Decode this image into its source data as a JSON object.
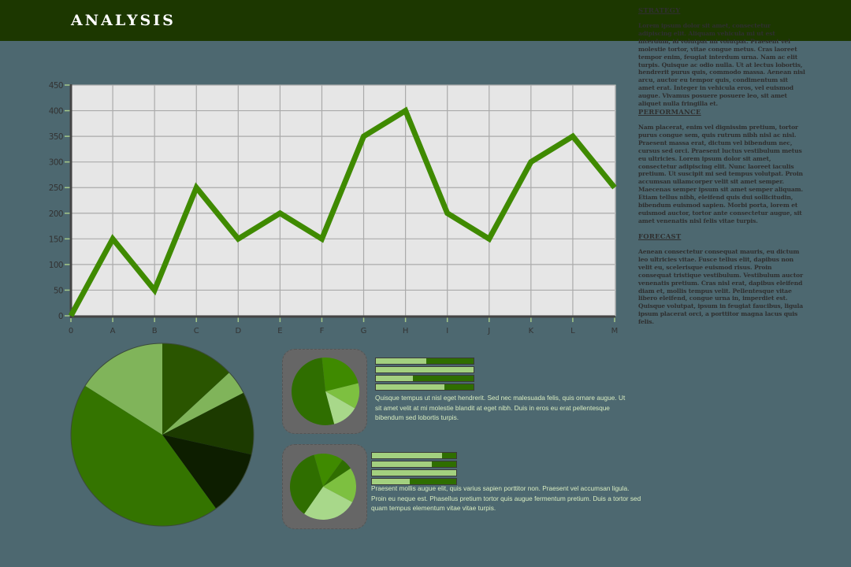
{
  "header": {
    "title": "ANALYSIS"
  },
  "colors": {
    "header_bg": "#1c3700",
    "page_bg": "#4d6870",
    "line": "#3f8a00",
    "plot_bg": "#e6e6e6",
    "grid": "#aaaaaa"
  },
  "chart_data": [
    {
      "type": "line",
      "title": "",
      "xlabel": "",
      "ylabel": "",
      "categories": [
        "0",
        "A",
        "B",
        "C",
        "D",
        "E",
        "F",
        "G",
        "H",
        "I",
        "J",
        "K",
        "L",
        "M"
      ],
      "values": [
        0,
        150,
        50,
        250,
        150,
        200,
        150,
        350,
        400,
        200,
        150,
        300,
        350,
        250
      ],
      "ylim": [
        0,
        450
      ],
      "yticks": [
        0,
        50,
        100,
        150,
        200,
        250,
        300,
        350,
        400,
        450
      ],
      "grid": true,
      "legend": null
    },
    {
      "type": "pie",
      "title": "",
      "slices": [
        {
          "value": 13.1,
          "color": "#2a5500"
        },
        {
          "value": 4.3,
          "color": "#80b45a"
        },
        {
          "value": 11.1,
          "color": "#1c3a00"
        },
        {
          "value": 11.5,
          "color": "#0d1e00"
        },
        {
          "value": 44.0,
          "color": "#347400"
        },
        {
          "value": 16.0,
          "color": "#80b45a"
        }
      ]
    },
    {
      "type": "pie",
      "title": "",
      "start_angle_deg": -6,
      "slices": [
        {
          "value": 22.8,
          "color": "#3f8a00"
        },
        {
          "value": 12.2,
          "color": "#7dc040"
        },
        {
          "value": 12.5,
          "color": "#a8d88a"
        },
        {
          "value": 52.5,
          "color": "#2f6e00"
        }
      ]
    },
    {
      "type": "bar",
      "orientation": "horizontal",
      "values_percent": [
        52,
        100,
        38,
        70
      ]
    },
    {
      "type": "pie",
      "title": "",
      "start_angle_deg": -16,
      "slices": [
        {
          "value": 14.4,
          "color": "#3f8a00"
        },
        {
          "value": 5.7,
          "color": "#2f6e00"
        },
        {
          "value": 17.1,
          "color": "#7dc040"
        },
        {
          "value": 26.9,
          "color": "#a8d88a"
        },
        {
          "value": 35.9,
          "color": "#2f6e00"
        }
      ]
    },
    {
      "type": "bar",
      "orientation": "horizontal",
      "values_percent": [
        83,
        71,
        100,
        45
      ]
    }
  ],
  "sidebar": {
    "sections": [
      {
        "heading": "STRATEGY",
        "body": "Lorem ipsum dolor sit amet, consectetur adipiscing elit. Aliquam vehicula mi ut est interdum, id volutpat mi volutpat. Praesent vel molestie tortor, vitae congue metus. Cras laoreet tempor enim, feugiat interdum urna. Nam ac elit turpis. Quisque ac odio nulla. Ut at lectus lobortis, hendrerit purus quis, commodo massa. Aenean nisl arcu, auctor eu tempor quis, condimentum sit amet erat. Integer in vehicula eros, vel euismod augue. Vivamus posuere posuere leo, sit amet aliquet nulla fringilla et."
      },
      {
        "heading": "PERFORMANCE",
        "body": "Nam placerat, enim vel dignissim pretium, tortor purus congue sem, quis rutrum nibh nisl ac nisl. Praesent massa erat, dictum vel bibendum nec, cursus sed orci. Praesent luctus vestibulum metus eu ultricies. Lorem ipsum dolor sit amet, consectetur adipiscing elit. Nunc laoreet iaculis pretium. Ut suscipit mi sed tempus volutpat. Proin accumsan ullamcorper velit sit amet semper. Maecenas semper ipsum sit amet semper aliquam. Etiam tellus nibh, eleifend quis dui sollicitudin, bibendum euismod sapien. Morbi porta, lorem et euismod auctor, tortor ante consectetur augue, sit amet venenatis nisl felis vitae turpis."
      },
      {
        "heading": "FORECAST",
        "body": "Aenean consectetur consequat mauris, eu dictum leo ultricies vitae. Fusce tellus elit, dapibus non velit eu, scelerisque euismod risus. Proin consequat tristique vestibulum. Vestibulum auctor venenatis pretium. Cras nisl erat, dapibus eleifend diam et, mollis tempus velit. Pellentesque vitae libero eleifend, congue urna in, imperdiet est. Quisque volutpat, ipsum in feugiat faucibus, ligula ipsum placerat orci, a porttitor magna lacus quis felis."
      }
    ]
  },
  "widgets": [
    {
      "text": "Quisque tempus ut nisl eget hendrerit. Sed nec malesuada felis, quis ornare augue. Ut sit amet velit at mi molestie blandit at eget nibh. Duis in eros eu erat pellentesque bibendum sed lobortis turpis."
    },
    {
      "text": "Praesent mollis augue elit, quis varius sapien porttitor non. Praesent vel accumsan ligula. Proin eu neque est. Phasellus pretium tortor quis augue fermentum pretium. Duis a tortor sed quam tempus elementum vitae vitae turpis."
    }
  ]
}
